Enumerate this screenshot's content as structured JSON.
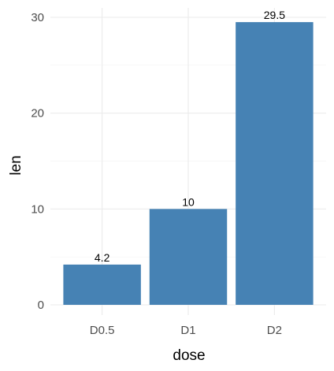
{
  "chart_data": {
    "type": "bar",
    "title": "",
    "xlabel": "dose",
    "ylabel": "len",
    "categories": [
      "D0.5",
      "D1",
      "D2"
    ],
    "values": [
      4.2,
      10,
      29.5
    ],
    "data_labels": [
      "4.2",
      "10",
      "29.5"
    ],
    "y_ticks": [
      0,
      10,
      20,
      30
    ],
    "y_tick_labels": [
      "0",
      "10",
      "20",
      "30"
    ],
    "ylim": [
      0,
      30.975
    ],
    "grid": true,
    "bar_color": "#4682b4"
  }
}
